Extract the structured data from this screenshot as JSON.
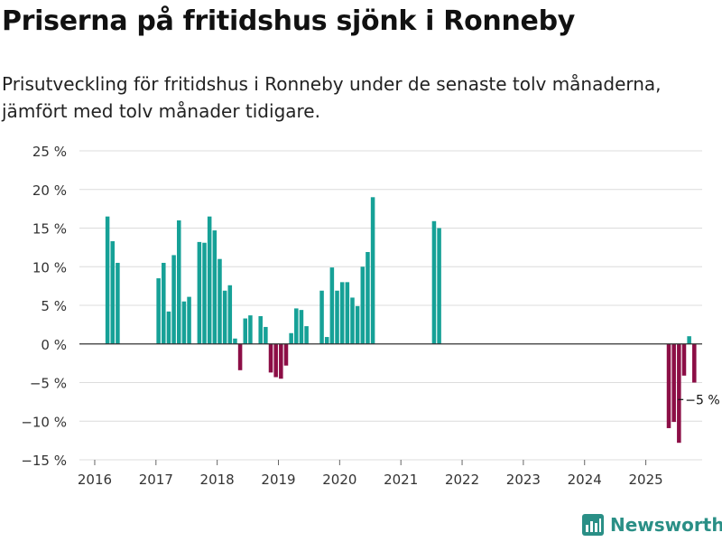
{
  "title": "Priserna på fritidshus sjönk i Ronneby",
  "subtitle": "Prisutveckling för fritidshus i Ronneby under de senaste tolv månaderna, jämfört med tolv månader tidigare.",
  "brand": "Newsworthy",
  "colors": {
    "positive": "#16a197",
    "negative": "#8c0e46",
    "grid": "#dcdcdc",
    "zero": "#333333",
    "brand": "#2a8f86"
  },
  "chart_data": {
    "type": "bar",
    "ylim": [
      -15,
      25
    ],
    "yticks": [
      -15,
      -10,
      -5,
      0,
      5,
      10,
      15,
      20,
      25
    ],
    "ytick_labels": [
      "−15 %",
      "−10 %",
      "−5 %",
      "0 %",
      "5 %",
      "10 %",
      "15 %",
      "20 %",
      "25 %"
    ],
    "xlim": [
      2015.75,
      2025.92
    ],
    "xticks": [
      2016,
      2017,
      2018,
      2019,
      2020,
      2021,
      2022,
      2023,
      2024,
      2025
    ],
    "xtick_labels": [
      "2016",
      "2017",
      "2018",
      "2019",
      "2020",
      "2021",
      "2022",
      "2023",
      "2024",
      "2025"
    ],
    "annotation": {
      "label": "−5 %",
      "index": 70
    },
    "series": [
      {
        "name": "Prisutveckling",
        "points": [
          {
            "x": "2016-03",
            "y": 16.5
          },
          {
            "x": "2016-04",
            "y": 13.3
          },
          {
            "x": "2016-05",
            "y": 10.5
          },
          {
            "x": "2017-01",
            "y": 8.5
          },
          {
            "x": "2017-02",
            "y": 10.5
          },
          {
            "x": "2017-03",
            "y": 4.2
          },
          {
            "x": "2017-04",
            "y": 11.5
          },
          {
            "x": "2017-05",
            "y": 16.0
          },
          {
            "x": "2017-06",
            "y": 5.5
          },
          {
            "x": "2017-07",
            "y": 6.1
          },
          {
            "x": "2017-09",
            "y": 13.2
          },
          {
            "x": "2017-10",
            "y": 13.1
          },
          {
            "x": "2017-11",
            "y": 16.5
          },
          {
            "x": "2017-12",
            "y": 14.7
          },
          {
            "x": "2018-01",
            "y": 11.0
          },
          {
            "x": "2018-02",
            "y": 6.9
          },
          {
            "x": "2018-03",
            "y": 7.6
          },
          {
            "x": "2018-04",
            "y": 0.7
          },
          {
            "x": "2018-05",
            "y": -3.4
          },
          {
            "x": "2018-06",
            "y": 3.3
          },
          {
            "x": "2018-07",
            "y": 3.7
          },
          {
            "x": "2018-09",
            "y": 3.6
          },
          {
            "x": "2018-10",
            "y": 2.2
          },
          {
            "x": "2018-11",
            "y": -3.7
          },
          {
            "x": "2018-12",
            "y": -4.3
          },
          {
            "x": "2019-01",
            "y": -4.5
          },
          {
            "x": "2019-02",
            "y": -2.8
          },
          {
            "x": "2019-03",
            "y": 1.4
          },
          {
            "x": "2019-04",
            "y": 4.6
          },
          {
            "x": "2019-05",
            "y": 4.4
          },
          {
            "x": "2019-06",
            "y": 2.3
          },
          {
            "x": "2019-09",
            "y": 6.9
          },
          {
            "x": "2019-10",
            "y": 0.9
          },
          {
            "x": "2019-11",
            "y": 9.9
          },
          {
            "x": "2019-12",
            "y": 6.9
          },
          {
            "x": "2020-01",
            "y": 8.0
          },
          {
            "x": "2020-02",
            "y": 8.0
          },
          {
            "x": "2020-03",
            "y": 6.0
          },
          {
            "x": "2020-04",
            "y": 4.9
          },
          {
            "x": "2020-05",
            "y": 10.0
          },
          {
            "x": "2020-06",
            "y": 11.9
          },
          {
            "x": "2020-07",
            "y": 19.0
          },
          {
            "x": "2021-07",
            "y": 15.9
          },
          {
            "x": "2021-08",
            "y": 15.0
          },
          {
            "x": "2025-05",
            "y": -10.9
          },
          {
            "x": "2025-06",
            "y": -10.1
          },
          {
            "x": "2025-07",
            "y": -12.8
          },
          {
            "x": "2025-08",
            "y": -4.1
          },
          {
            "x": "2025-09",
            "y": 1.0
          },
          {
            "x": "2025-10",
            "y": -5.0
          }
        ]
      }
    ]
  }
}
